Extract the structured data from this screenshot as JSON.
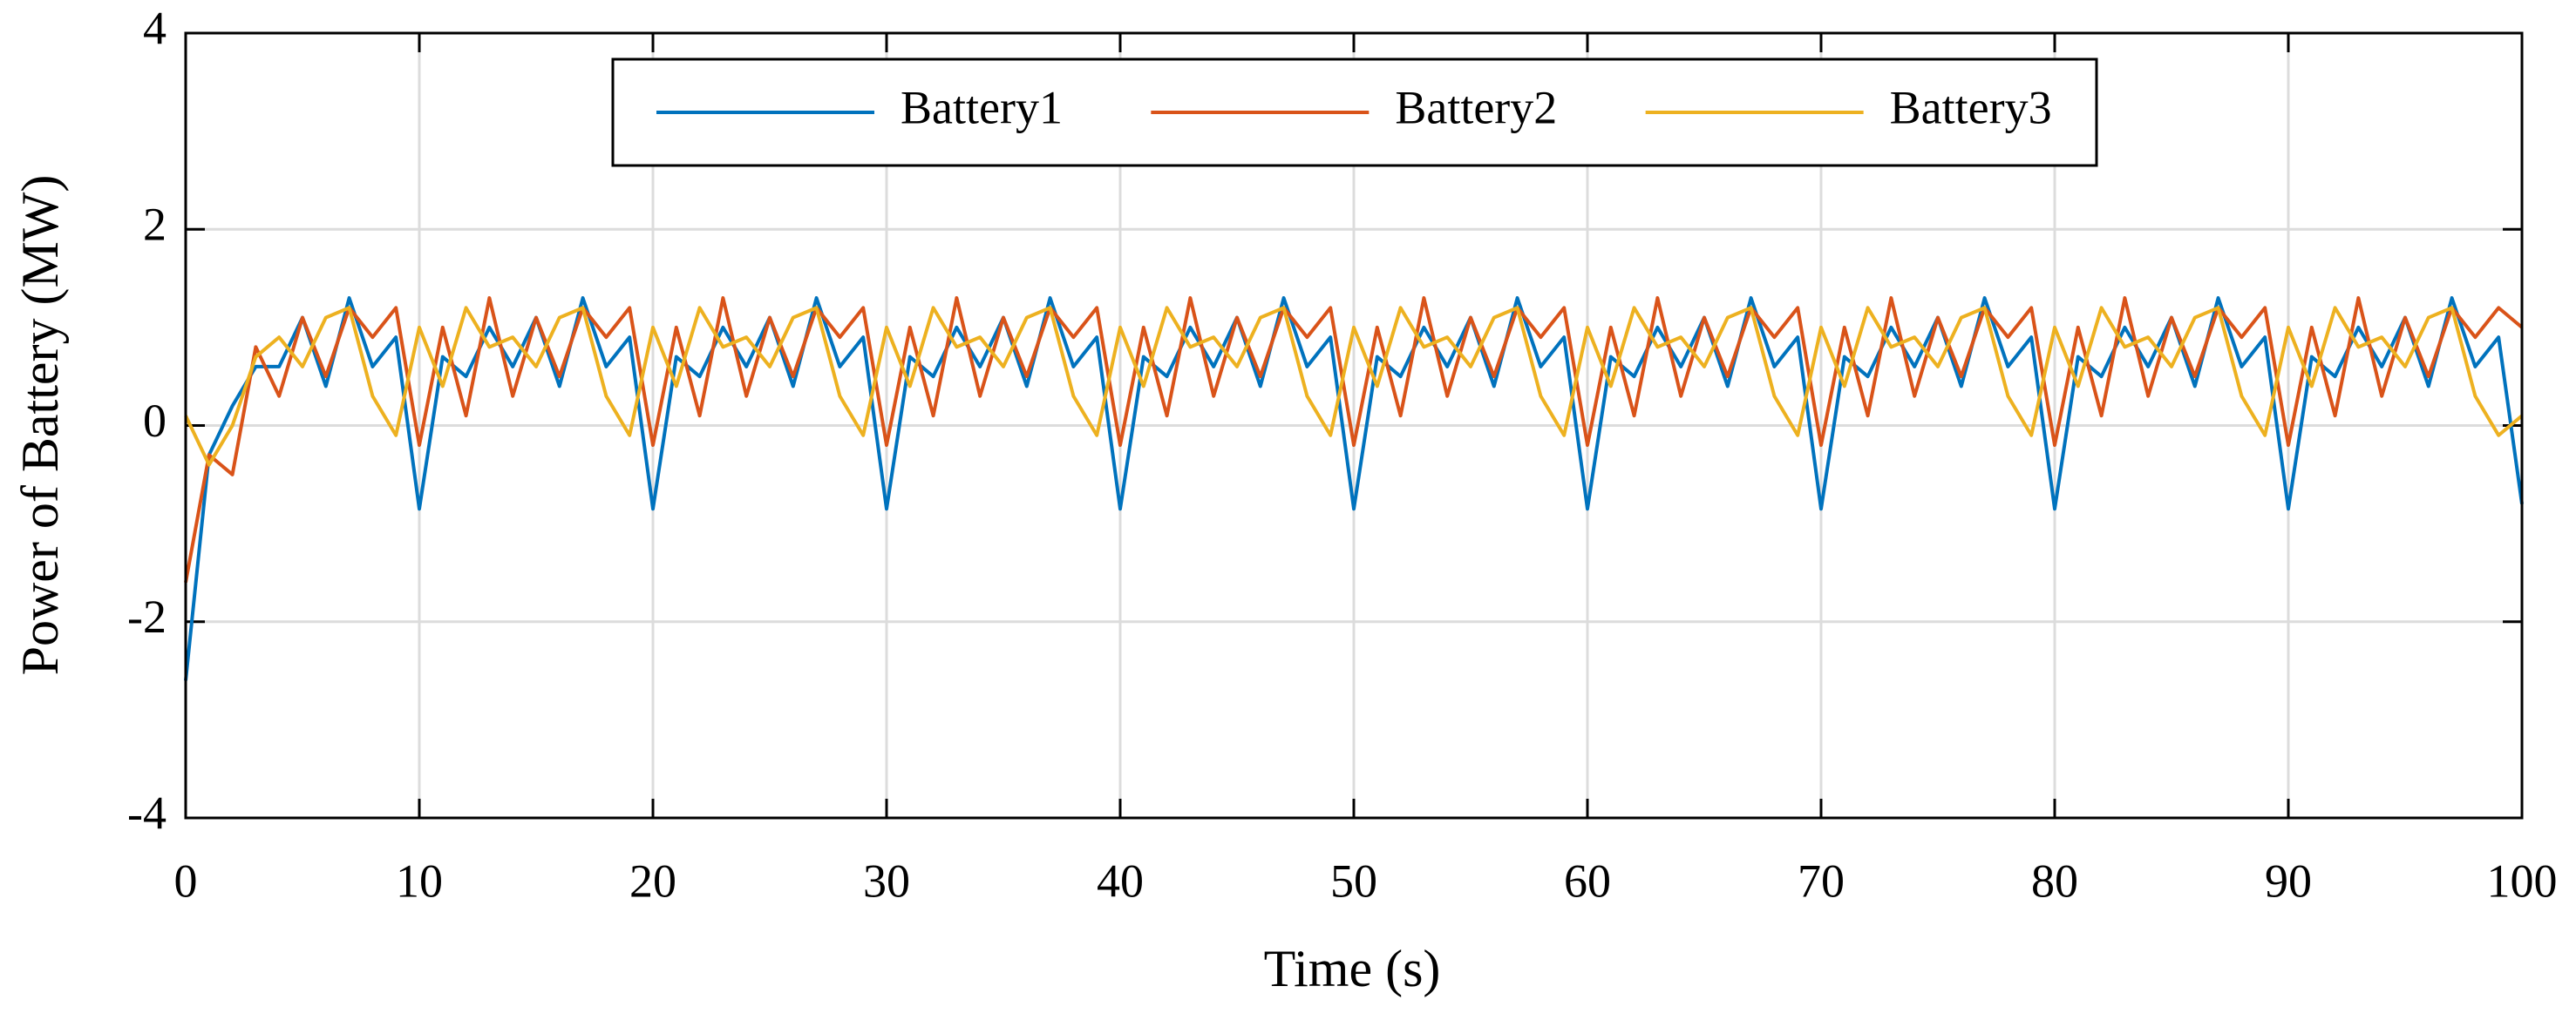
{
  "chart_data": {
    "type": "line",
    "xlabel": "Time (s)",
    "ylabel": "Power of Battery (MW)",
    "x": [
      0,
      1,
      2,
      3,
      4,
      5,
      6,
      7,
      8,
      9,
      10,
      11,
      12,
      13,
      14,
      15,
      16,
      17,
      18,
      19,
      20,
      21,
      22,
      23,
      24,
      25,
      26,
      27,
      28,
      29,
      30,
      31,
      32,
      33,
      34,
      35,
      36,
      37,
      38,
      39,
      40,
      41,
      42,
      43,
      44,
      45,
      46,
      47,
      48,
      49,
      50,
      51,
      52,
      53,
      54,
      55,
      56,
      57,
      58,
      59,
      60,
      61,
      62,
      63,
      64,
      65,
      66,
      67,
      68,
      69,
      70,
      71,
      72,
      73,
      74,
      75,
      76,
      77,
      78,
      79,
      80,
      81,
      82,
      83,
      84,
      85,
      86,
      87,
      88,
      89,
      90,
      91,
      92,
      93,
      94,
      95,
      96,
      97,
      98,
      99,
      100
    ],
    "series": [
      {
        "name": "Battery1",
        "color": "#0072BD",
        "values": [
          -2.6,
          -0.3,
          0.2,
          0.6,
          0.6,
          1.1,
          0.4,
          1.3,
          0.6,
          0.9,
          -0.85,
          0.7,
          0.5,
          1.0,
          0.6,
          1.1,
          0.4,
          1.3,
          0.6,
          0.9,
          -0.85,
          0.7,
          0.5,
          1.0,
          0.6,
          1.1,
          0.4,
          1.3,
          0.6,
          0.9,
          -0.85,
          0.7,
          0.5,
          1.0,
          0.6,
          1.1,
          0.4,
          1.3,
          0.6,
          0.9,
          -0.85,
          0.7,
          0.5,
          1.0,
          0.6,
          1.1,
          0.4,
          1.3,
          0.6,
          0.9,
          -0.85,
          0.7,
          0.5,
          1.0,
          0.6,
          1.1,
          0.4,
          1.3,
          0.6,
          0.9,
          -0.85,
          0.7,
          0.5,
          1.0,
          0.6,
          1.1,
          0.4,
          1.3,
          0.6,
          0.9,
          -0.85,
          0.7,
          0.5,
          1.0,
          0.6,
          1.1,
          0.4,
          1.3,
          0.6,
          0.9,
          -0.85,
          0.7,
          0.5,
          1.0,
          0.6,
          1.1,
          0.4,
          1.3,
          0.6,
          0.9,
          -0.85,
          0.7,
          0.5,
          1.0,
          0.6,
          1.1,
          0.4,
          1.3,
          0.6,
          0.9,
          -0.8
        ]
      },
      {
        "name": "Battery2",
        "color": "#D95319",
        "values": [
          -1.6,
          -0.3,
          -0.5,
          0.8,
          0.3,
          1.1,
          0.5,
          1.2,
          0.9,
          1.2,
          -0.2,
          1.0,
          0.1,
          1.3,
          0.3,
          1.1,
          0.5,
          1.2,
          0.9,
          1.2,
          -0.2,
          1.0,
          0.1,
          1.3,
          0.3,
          1.1,
          0.5,
          1.2,
          0.9,
          1.2,
          -0.2,
          1.0,
          0.1,
          1.3,
          0.3,
          1.1,
          0.5,
          1.2,
          0.9,
          1.2,
          -0.2,
          1.0,
          0.1,
          1.3,
          0.3,
          1.1,
          0.5,
          1.2,
          0.9,
          1.2,
          -0.2,
          1.0,
          0.1,
          1.3,
          0.3,
          1.1,
          0.5,
          1.2,
          0.9,
          1.2,
          -0.2,
          1.0,
          0.1,
          1.3,
          0.3,
          1.1,
          0.5,
          1.2,
          0.9,
          1.2,
          -0.2,
          1.0,
          0.1,
          1.3,
          0.3,
          1.1,
          0.5,
          1.2,
          0.9,
          1.2,
          -0.2,
          1.0,
          0.1,
          1.3,
          0.3,
          1.1,
          0.5,
          1.2,
          0.9,
          1.2,
          -0.2,
          1.0,
          0.1,
          1.3,
          0.3,
          1.1,
          0.5,
          1.2,
          0.9,
          1.2,
          1.0
        ]
      },
      {
        "name": "Battery3",
        "color": "#EDB120",
        "values": [
          0.1,
          -0.4,
          0.0,
          0.7,
          0.9,
          0.6,
          1.1,
          1.2,
          0.3,
          -0.1,
          1.0,
          0.4,
          1.2,
          0.8,
          0.9,
          0.6,
          1.1,
          1.2,
          0.3,
          -0.1,
          1.0,
          0.4,
          1.2,
          0.8,
          0.9,
          0.6,
          1.1,
          1.2,
          0.3,
          -0.1,
          1.0,
          0.4,
          1.2,
          0.8,
          0.9,
          0.6,
          1.1,
          1.2,
          0.3,
          -0.1,
          1.0,
          0.4,
          1.2,
          0.8,
          0.9,
          0.6,
          1.1,
          1.2,
          0.3,
          -0.1,
          1.0,
          0.4,
          1.2,
          0.8,
          0.9,
          0.6,
          1.1,
          1.2,
          0.3,
          -0.1,
          1.0,
          0.4,
          1.2,
          0.8,
          0.9,
          0.6,
          1.1,
          1.2,
          0.3,
          -0.1,
          1.0,
          0.4,
          1.2,
          0.8,
          0.9,
          0.6,
          1.1,
          1.2,
          0.3,
          -0.1,
          1.0,
          0.4,
          1.2,
          0.8,
          0.9,
          0.6,
          1.1,
          1.2,
          0.3,
          -0.1,
          1.0,
          0.4,
          1.2,
          0.8,
          0.9,
          0.6,
          1.1,
          1.2,
          0.3,
          -0.1,
          0.1
        ]
      }
    ],
    "xlim": [
      0,
      100
    ],
    "xticks": [
      0,
      10,
      20,
      30,
      40,
      50,
      60,
      70,
      80,
      90,
      100
    ],
    "ylim": [
      -4,
      4
    ],
    "yticks": [
      -4,
      -2,
      0,
      2,
      4
    ],
    "grid": true,
    "legend": "top"
  }
}
